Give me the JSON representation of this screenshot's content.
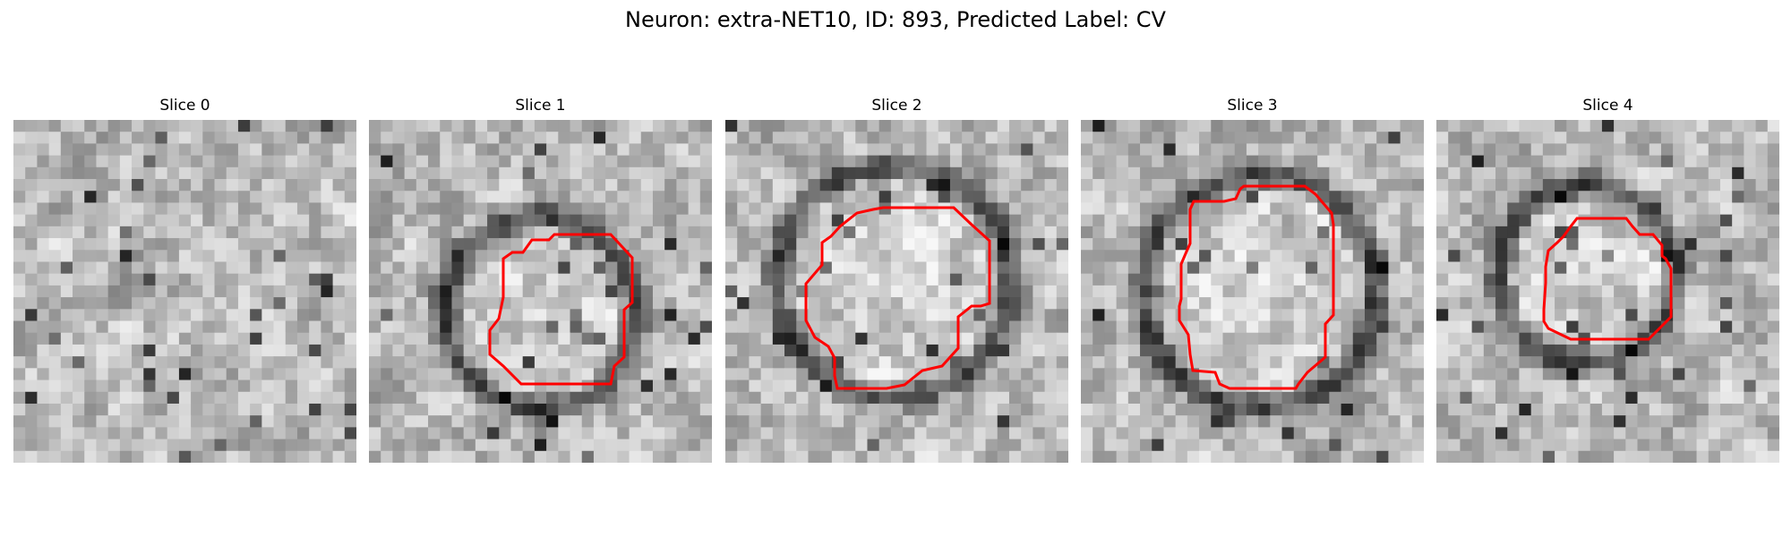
{
  "figure": {
    "title": "Neuron: extra-NET10, ID: 893, Predicted Label: CV"
  },
  "slices": [
    {
      "title": "Slice 0",
      "has_contour": false
    },
    {
      "title": "Slice 1",
      "has_contour": true
    },
    {
      "title": "Slice 2",
      "has_contour": true
    },
    {
      "title": "Slice 3",
      "has_contour": true
    },
    {
      "title": "Slice 4",
      "has_contour": true
    }
  ],
  "colors": {
    "contour": "#ff0000",
    "colormap": "gray"
  }
}
